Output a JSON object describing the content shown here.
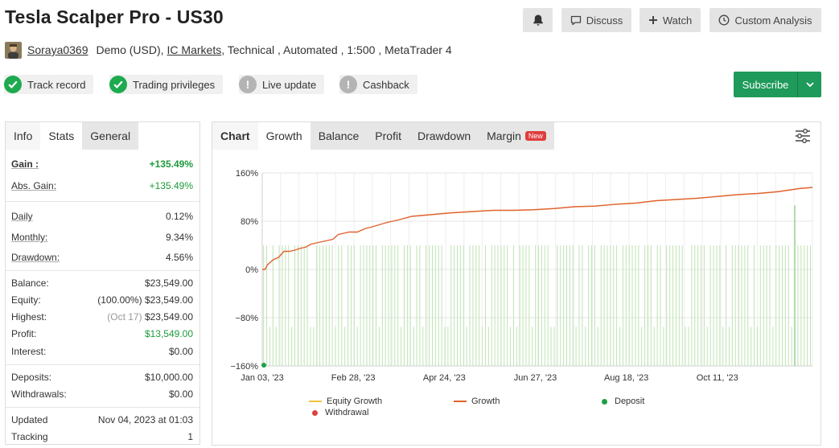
{
  "header": {
    "title": "Tesla Scalper Pro - US30",
    "buttons": {
      "discuss": "Discuss",
      "watch": "Watch",
      "custom_analysis": "Custom Analysis"
    }
  },
  "meta": {
    "username": "Soraya0369",
    "account_type": "Demo (USD),",
    "broker": "IC Markets",
    "details": ", Technical , Automated , 1:500 , MetaTrader 4"
  },
  "badges": [
    {
      "label": "Track record",
      "status": "ok"
    },
    {
      "label": "Trading privileges",
      "status": "ok"
    },
    {
      "label": "Live update",
      "status": "warn"
    },
    {
      "label": "Cashback",
      "status": "warn"
    }
  ],
  "subscribe": {
    "label": "Subscribe"
  },
  "left_tabs": {
    "info": "Info",
    "stats": "Stats",
    "general": "General"
  },
  "stats": {
    "gain": {
      "label": "Gain :",
      "value": "+135.49%"
    },
    "abs_gain": {
      "label": "Abs. Gain:",
      "value": "+135.49%"
    },
    "daily": {
      "label": "Daily",
      "value": "0.12%"
    },
    "monthly": {
      "label": "Monthly:",
      "value": "9.34%"
    },
    "drawdown": {
      "label": "Drawdown:",
      "value": "4.56%"
    },
    "balance": {
      "label": "Balance:",
      "value": "$23,549.00"
    },
    "equity": {
      "label": "Equity:",
      "prefix": "(100.00%)",
      "value": "$23,549.00"
    },
    "highest": {
      "label": "Highest:",
      "prefix": "(Oct 17)",
      "value": "$23,549.00"
    },
    "profit": {
      "label": "Profit:",
      "value": "$13,549.00"
    },
    "interest": {
      "label": "Interest:",
      "value": "$0.00"
    },
    "deposits": {
      "label": "Deposits:",
      "value": "$10,000.00"
    },
    "withdrawals": {
      "label": "Withdrawals:",
      "value": "$0.00"
    },
    "updated": {
      "label": "Updated",
      "value": "Nov 04, 2023 at 01:03"
    },
    "tracking": {
      "label": "Tracking",
      "value": "1"
    }
  },
  "chart_tabs": {
    "chart": "Chart",
    "growth": "Growth",
    "balance": "Balance",
    "profit": "Profit",
    "drawdown": "Drawdown",
    "margin": "Margin",
    "new_badge": "New"
  },
  "legend": {
    "equity_growth": "Equity Growth",
    "growth": "Growth",
    "deposit": "Deposit",
    "withdrawal": "Withdrawal"
  },
  "colors": {
    "growth": "#e0622c",
    "equity": "#f0c040",
    "bars": "#bfe3b4",
    "deposit": "#1ea046",
    "withdrawal": "#e04040",
    "accent": "#1e9a5a"
  },
  "chart_data": {
    "type": "line",
    "ylim": [
      -160,
      160
    ],
    "yticks": [
      "160%",
      "80%",
      "0%",
      "−80%",
      "−160%"
    ],
    "xticks": [
      "Jan 03, '23",
      "Feb 28, '23",
      "Apr 24, '23",
      "Jun 27, '23",
      "Aug 18, '23",
      "Oct 11, '23"
    ],
    "growth_series": {
      "name": "Growth",
      "points": [
        [
          0,
          0
        ],
        [
          2,
          0
        ],
        [
          4,
          8
        ],
        [
          8,
          16
        ],
        [
          12,
          20
        ],
        [
          16,
          30
        ],
        [
          20,
          30
        ],
        [
          24,
          32
        ],
        [
          28,
          35
        ],
        [
          32,
          37
        ],
        [
          36,
          42
        ],
        [
          40,
          44
        ],
        [
          44,
          46
        ],
        [
          48,
          48
        ],
        [
          52,
          50
        ],
        [
          56,
          58
        ],
        [
          60,
          60
        ],
        [
          64,
          62
        ],
        [
          70,
          62
        ],
        [
          76,
          68
        ],
        [
          80,
          70
        ],
        [
          86,
          74
        ],
        [
          92,
          78
        ],
        [
          100,
          82
        ],
        [
          110,
          88
        ],
        [
          125,
          91
        ],
        [
          140,
          94
        ],
        [
          155,
          96
        ],
        [
          170,
          98
        ],
        [
          185,
          98
        ],
        [
          200,
          99
        ],
        [
          215,
          101
        ],
        [
          230,
          104
        ],
        [
          245,
          105
        ],
        [
          260,
          108
        ],
        [
          275,
          110
        ],
        [
          290,
          114
        ],
        [
          305,
          116
        ],
        [
          320,
          118
        ],
        [
          335,
          121
        ],
        [
          350,
          124
        ],
        [
          365,
          126
        ],
        [
          380,
          129
        ],
        [
          395,
          134
        ],
        [
          405,
          136
        ]
      ]
    },
    "deposit": {
      "x": 0,
      "y": -160
    },
    "trade_bars": {
      "note": "alternating daily trade-activity bars between -160% and +40%, mostly",
      "high": 40,
      "low": -95,
      "spike": 106
    }
  }
}
